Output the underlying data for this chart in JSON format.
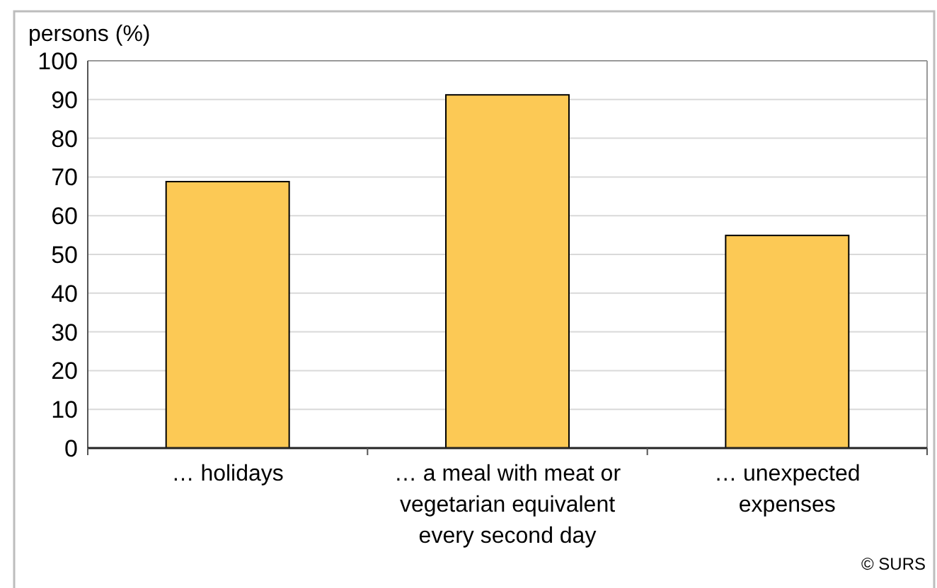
{
  "chart_data": {
    "type": "bar",
    "ylabel": "persons (%)",
    "categories": [
      "… holidays",
      "… a meal with meat or vegetarian equivalent every second day",
      "… unexpected expenses"
    ],
    "values": [
      68.8,
      91.2,
      54.9
    ],
    "color": "#fcc955",
    "ylim": [
      0,
      100
    ],
    "yticks": [
      0,
      10,
      20,
      30,
      40,
      50,
      60,
      70,
      80,
      90,
      100
    ],
    "grid": "y",
    "annotations": [
      "© SURS"
    ]
  }
}
